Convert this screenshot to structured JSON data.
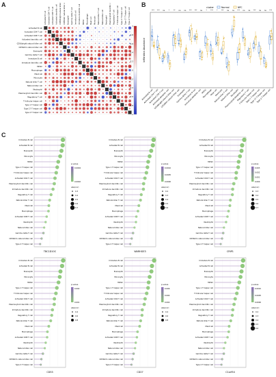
{
  "panels": {
    "a": "A",
    "b": "B",
    "c": "C"
  },
  "colors": {
    "pos": "#c0201f",
    "neg": "#1f2fbf",
    "normal": "#5b8fd6",
    "npc": "#e0b33a",
    "lollipop_point": "#8dc87a",
    "lollipop_line": "#9b7fb6"
  },
  "panelA": {
    "cells": [
      "Activated B cell",
      "Activated CD4 T cell",
      "Activated CD8 T cell",
      "Activated dendritic cell",
      "CD56bright natural killer cell",
      "CD56dim natural killer cell",
      "Eosinophil",
      "Gamma delta T cell",
      "Immature B cell",
      "Immature dendritic cell",
      "MDSC",
      "Macrophage",
      "Mast cell",
      "Monocyte",
      "Natural killer T cell",
      "Natural killer cell",
      "Neutrophil",
      "Plasmacytoid dendritic cell",
      "Regulatory T cell",
      "T follicular helper cell",
      "Type 1 T helper cell",
      "Type 17 T helper cell",
      "Type 2 T helper cell"
    ],
    "legend_ticks": [
      "1",
      "0.8",
      "0.6",
      "0.4",
      "0.2",
      "0",
      "-0.2",
      "-0.4",
      "-0.6",
      "-0.8",
      "-1"
    ]
  },
  "panelB": {
    "legend_title": "cluster",
    "legend_items": [
      "Normal",
      "NPC"
    ],
    "ylabel": "Infiltration Abundance",
    "significance": [
      "***",
      "***",
      "ns",
      "*",
      "**",
      "ns",
      "ns",
      "***",
      "***",
      "ns",
      "*",
      "***",
      "*",
      "***",
      "ns",
      "ns",
      "***",
      "ns",
      "ns",
      "***",
      "ns",
      "ns",
      "***"
    ]
  },
  "panelC": {
    "lollipop_cells": [
      "Immature B cell",
      "Activated B cell",
      "Eosinophil",
      "Monocyte",
      "MDSC",
      "Type 1 T helper cell",
      "T follicular helper cell",
      "Activated CD4 T cell",
      "Plasmacytoid dendritic cell",
      "Immature dendritic cell",
      "Regulatory T cell",
      "Natural killer T cell",
      "Mast cell",
      "Macrophage",
      "Activated CD8 T cell",
      "Neutrophil",
      "Natural killer cell",
      "Gamma delta T cell",
      "CD56dim natural killer cell",
      "Type 2 T helper cell"
    ],
    "charts": [
      {
        "gene": "TBC1D10C",
        "pvalue_title": "p.value",
        "size_title": "abs(cor)",
        "p_ticks": [
          "0.0004",
          "0.0002"
        ],
        "size_ticks": [
          "0.3",
          "0.4",
          "0.5",
          "0.6",
          "0.7"
        ]
      },
      {
        "gene": "WARHGE3",
        "pvalue_title": "p.value",
        "size_title": "abs(cor)",
        "p_ticks": [
          "0.0010",
          "0.0005",
          "0.0000"
        ],
        "size_ticks": [
          "0.2",
          "0.3",
          "0.4",
          "0.5",
          "0.6"
        ]
      },
      {
        "gene": "CRIP1",
        "pvalue_title": "p.value",
        "size_title": "abs(cor)",
        "p_ticks": [
          "0.003",
          "0.002",
          "0.001",
          "0.000"
        ],
        "size_ticks": [
          "0.3",
          "0.4",
          "0.5",
          "0.6",
          "0.7"
        ]
      },
      {
        "gene": "CD53",
        "pvalue_title": "p.value",
        "size_title": "abs(cor)",
        "p_ticks": [
          "0.002",
          "0.001"
        ],
        "size_ticks": [
          "0.4",
          "0.6",
          "0.8"
        ]
      },
      {
        "gene": "CD27",
        "pvalue_title": "p.value",
        "size_title": "abs(cor)",
        "p_ticks": [
          "0.006",
          "0.004",
          "0.002"
        ],
        "size_ticks": [
          "0.4",
          "0.6",
          "0.8"
        ]
      },
      {
        "gene": "C1orf54",
        "pvalue_title": "p.value",
        "size_title": "abs(cor)",
        "p_ticks": [
          "0.0010",
          "0.0005",
          "0.0000"
        ],
        "size_ticks": [
          "0.2",
          "0.3",
          "0.4",
          "0.5",
          "0.6"
        ]
      }
    ]
  }
}
